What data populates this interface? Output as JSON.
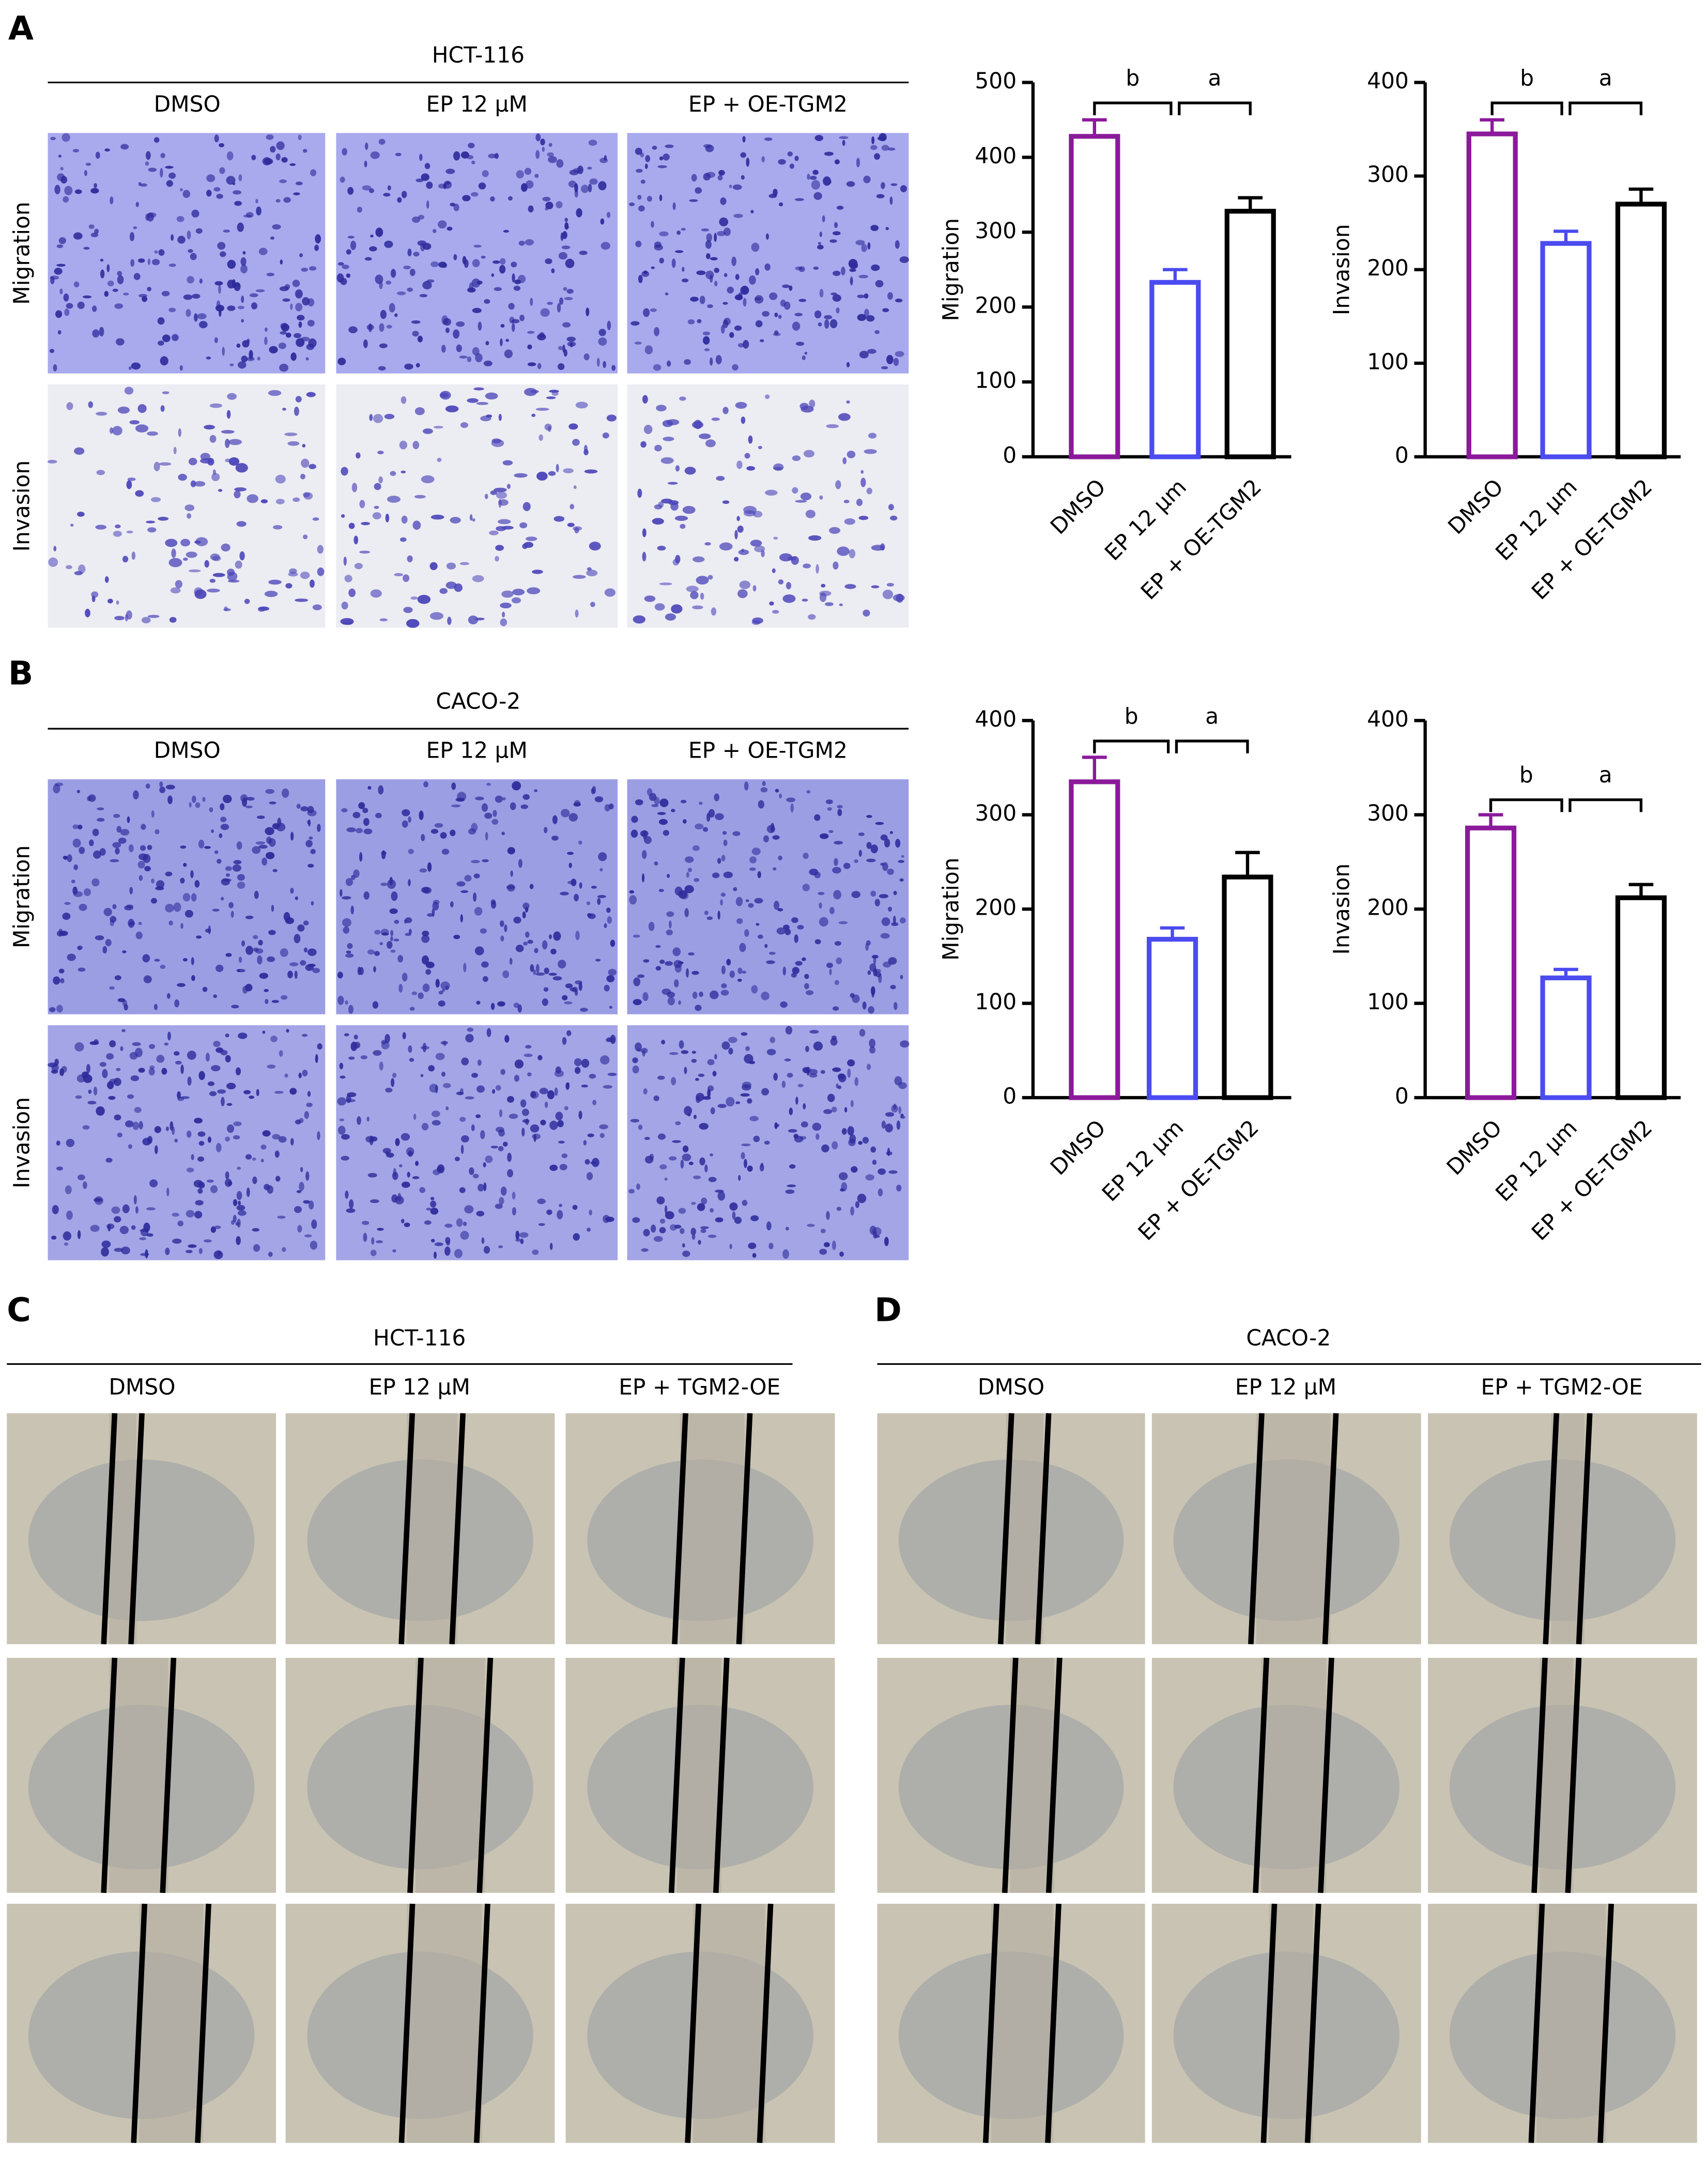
{
  "panels": [
    {
      "letter": "A",
      "cell_line": "HCT-116",
      "columns": [
        "DMSO",
        "EP 12 μM",
        "EP + OE-TGM2"
      ],
      "rows": [
        "Migration",
        "Invasion"
      ]
    },
    {
      "letter": "B",
      "cell_line": "CACO-2",
      "columns": [
        "DMSO",
        "EP 12 μM",
        "EP + OE-TGM2"
      ],
      "rows": [
        "Migration",
        "Invasion"
      ]
    },
    {
      "letter": "C",
      "cell_line": "HCT-116",
      "columns": [
        "DMSO",
        "EP 12 μM",
        "EP + TGM2-OE"
      ]
    },
    {
      "letter": "D",
      "cell_line": "CACO-2",
      "columns": [
        "DMSO",
        "EP 12 μM",
        "EP + TGM2-OE"
      ]
    }
  ],
  "chart_data": [
    {
      "type": "bar",
      "ylabel": "Migration",
      "categories": [
        "DMSO",
        "EP 12 μm",
        "EP + OE-TGM2"
      ],
      "values": [
        428,
        233,
        328
      ],
      "errors": [
        22,
        17,
        18
      ],
      "colors": [
        "#8b1a9b",
        "#4b4bf0",
        "#000000"
      ],
      "ylim": [
        0,
        500
      ],
      "yticks": [
        0,
        100,
        200,
        300,
        400,
        500
      ],
      "annotations": [
        "b",
        "a"
      ]
    },
    {
      "type": "bar",
      "ylabel": "Invasion",
      "categories": [
        "DMSO",
        "EP 12 μm",
        "EP + OE-TGM2"
      ],
      "values": [
        345,
        228,
        270
      ],
      "errors": [
        15,
        13,
        16
      ],
      "colors": [
        "#8b1a9b",
        "#4b4bf0",
        "#000000"
      ],
      "ylim": [
        0,
        400
      ],
      "yticks": [
        0,
        100,
        200,
        300,
        400
      ],
      "annotations": [
        "b",
        "a"
      ]
    },
    {
      "type": "bar",
      "ylabel": "Migration",
      "categories": [
        "DMSO",
        "EP 12 μm",
        "EP + OE-TGM2"
      ],
      "values": [
        335,
        168,
        234
      ],
      "errors": [
        26,
        12,
        26
      ],
      "colors": [
        "#8b1a9b",
        "#4b4bf0",
        "#000000"
      ],
      "ylim": [
        0,
        400
      ],
      "yticks": [
        0,
        100,
        200,
        300,
        400
      ],
      "annotations": [
        "b",
        "a"
      ]
    },
    {
      "type": "bar",
      "ylabel": "Invasion",
      "categories": [
        "DMSO",
        "EP 12 μm",
        "EP + OE-TGM2"
      ],
      "values": [
        286,
        127,
        212
      ],
      "errors": [
        14,
        9,
        14
      ],
      "colors": [
        "#8b1a9b",
        "#4b4bf0",
        "#000000"
      ],
      "ylim": [
        0,
        400
      ],
      "yticks": [
        0,
        100,
        200,
        300,
        400
      ],
      "annotations": [
        "b",
        "a"
      ]
    }
  ]
}
